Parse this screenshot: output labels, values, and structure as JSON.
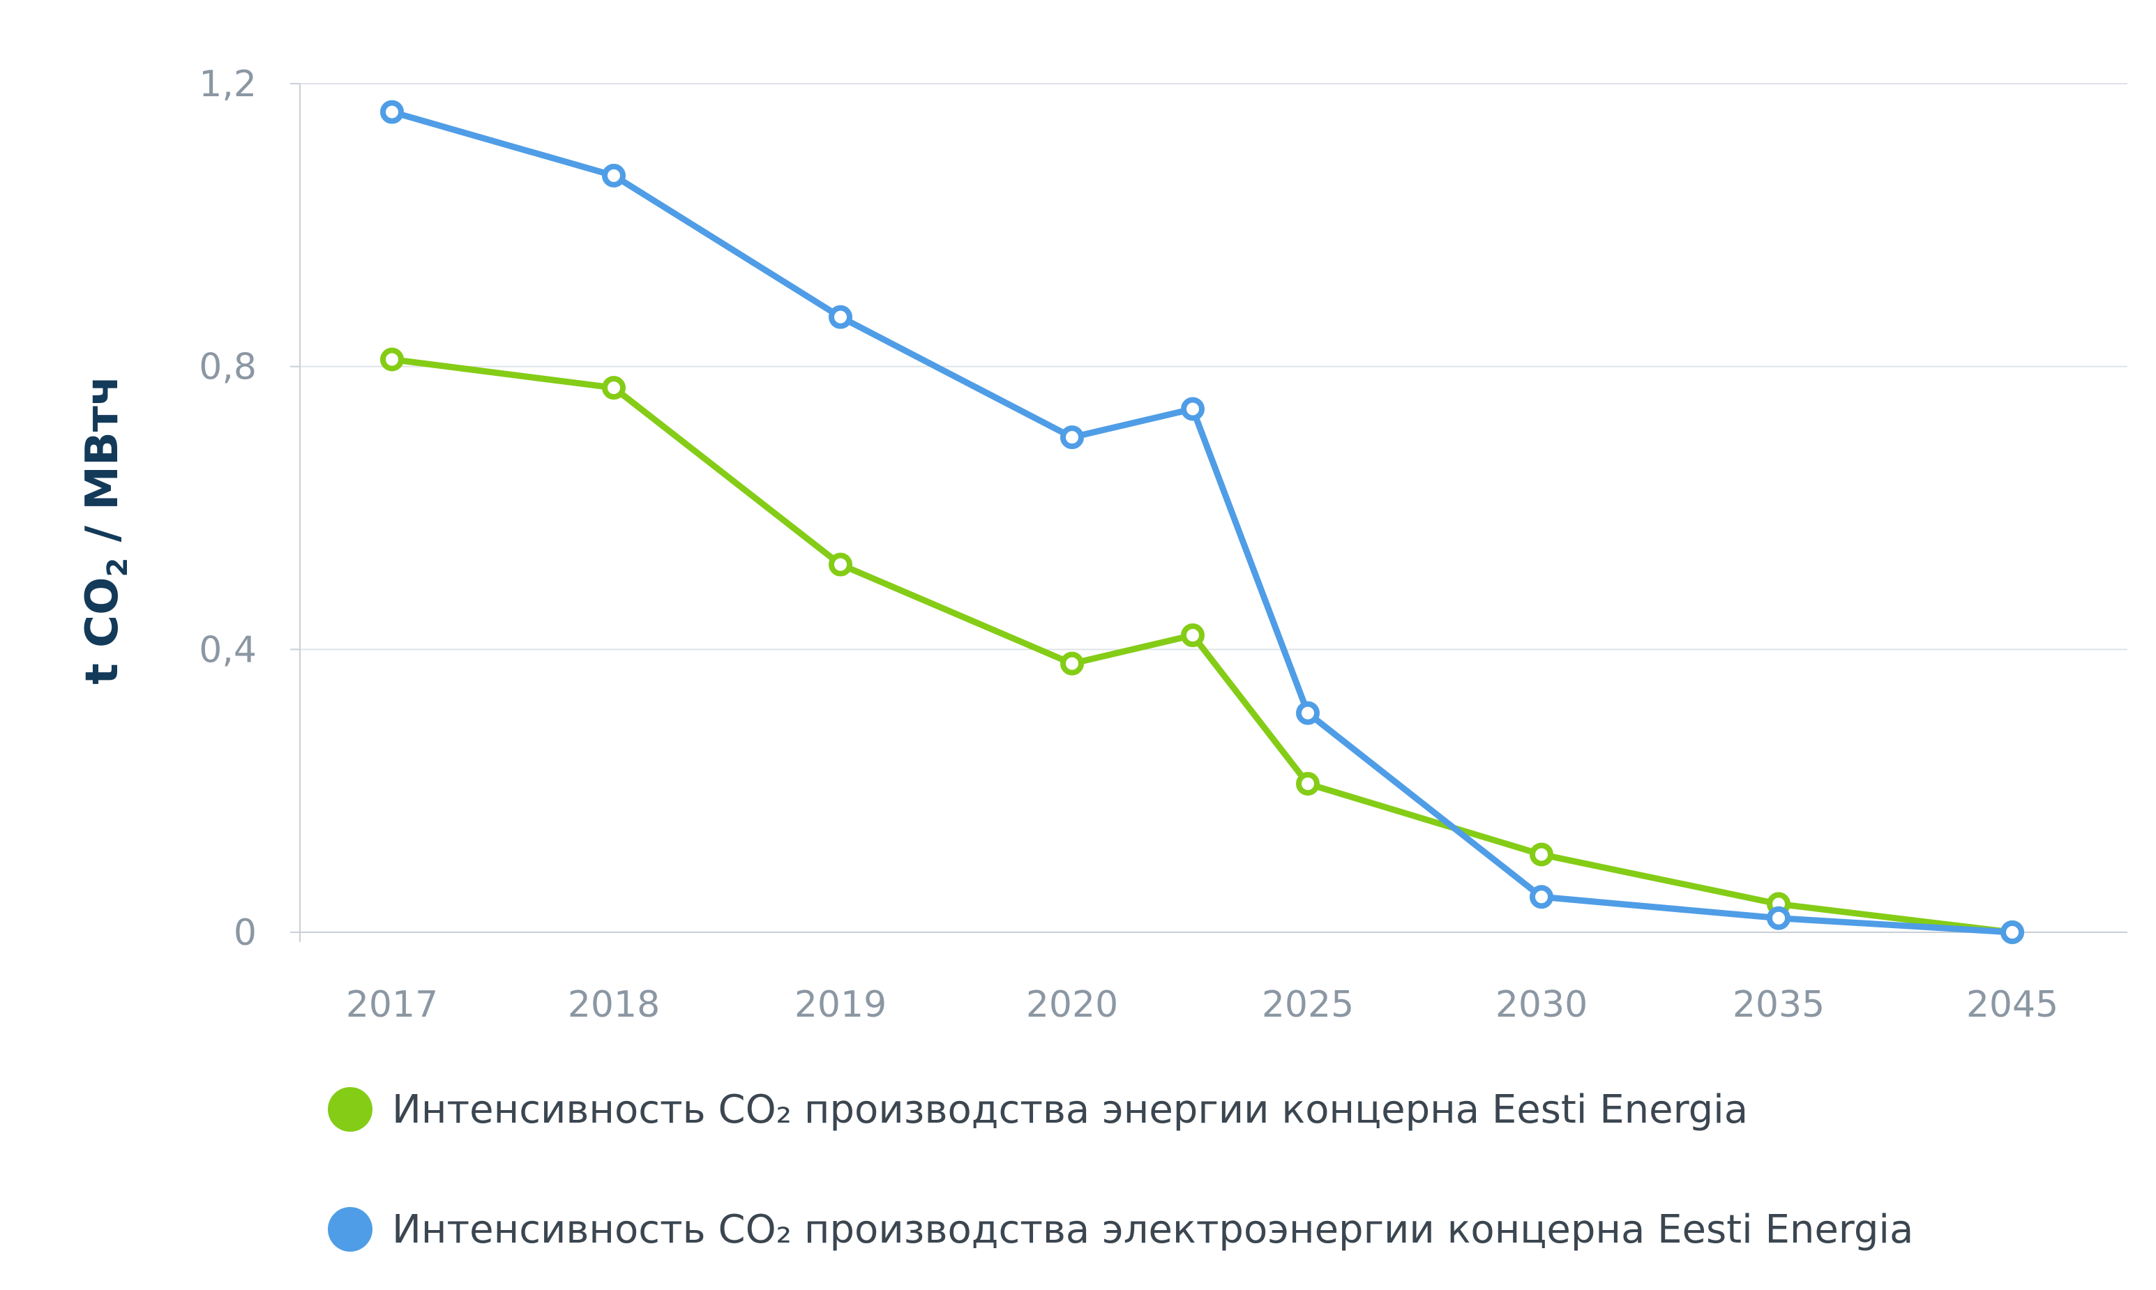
{
  "chart_data": {
    "type": "line",
    "categories": [
      "2017",
      "2018",
      "2019",
      "2020",
      "",
      "2025",
      "2030",
      "2035",
      "2045"
    ],
    "tick_labels": [
      "2017",
      "2018",
      "2019",
      "2020",
      "2025",
      "2030",
      "2035",
      "2045"
    ],
    "y_ticks": [
      0,
      0.4,
      0.8,
      1.2
    ],
    "y_tick_labels": [
      "0",
      "0,4",
      "0,8",
      "1,2"
    ],
    "ylim": [
      0,
      1.2
    ],
    "grid": true,
    "legend_position": "bottom",
    "ylabel": {
      "prefix": "t CO",
      "sub": "2",
      "suffix": " / МВтч"
    },
    "series": [
      {
        "name": "Интенсивность CO₂ производства энергии концерна Eesti Energia",
        "color": "#84cc16",
        "values": [
          0.81,
          0.77,
          0.52,
          0.38,
          0.42,
          0.21,
          0.11,
          0.04,
          0.0
        ]
      },
      {
        "name": "Интенсивность CO₂ производства электроэнергии концерна Eesti Energia",
        "color": "#4f9de6",
        "values": [
          1.16,
          1.07,
          0.87,
          0.7,
          0.74,
          0.31,
          0.05,
          0.02,
          0.0
        ]
      }
    ]
  }
}
